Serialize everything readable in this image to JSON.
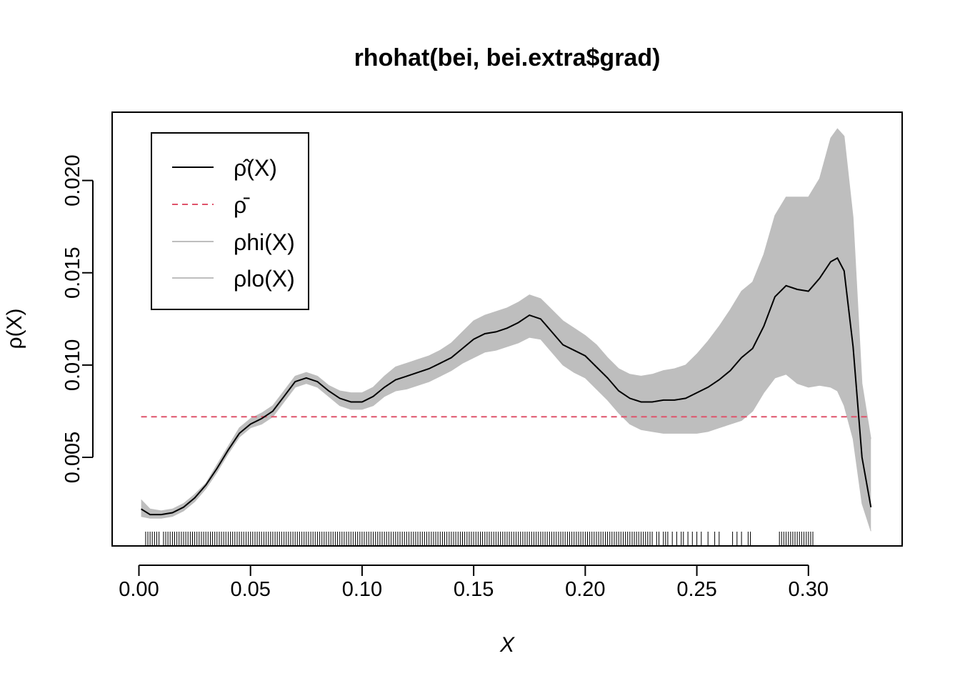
{
  "chart_data": {
    "type": "line",
    "title": "rhohat(bei, bei.extra$grad)",
    "xlabel": "X",
    "ylabel": "ρ(X)",
    "xlim": [
      -0.012,
      0.342
    ],
    "ylim": [
      0.0002,
      0.0237
    ],
    "x_ticks": [
      0.0,
      0.05,
      0.1,
      0.15,
      0.2,
      0.25,
      0.3
    ],
    "x_tick_labels": [
      "0.00",
      "0.05",
      "0.10",
      "0.15",
      "0.20",
      "0.25",
      "0.30"
    ],
    "y_ticks": [
      0.005,
      0.01,
      0.015,
      0.02
    ],
    "y_tick_labels": [
      "0.005",
      "0.010",
      "0.015",
      "0.020"
    ],
    "grid": false,
    "legend_position": "top-left",
    "legend": [
      {
        "label": "ρ̂(X)",
        "color": "#000000",
        "dash": "solid"
      },
      {
        "label": "ρ̄",
        "color": "#DF536B",
        "dash": "dashed"
      },
      {
        "label": "ρhi(X)",
        "color": "#BEBEBE",
        "dash": "solid"
      },
      {
        "label": "ρlo(X)",
        "color": "#BEBEBE",
        "dash": "solid"
      }
    ],
    "series": [
      {
        "name": "ρ̂(X)",
        "color": "#000000",
        "x": [
          0.001,
          0.005,
          0.01,
          0.015,
          0.02,
          0.025,
          0.03,
          0.035,
          0.04,
          0.045,
          0.05,
          0.055,
          0.06,
          0.065,
          0.07,
          0.075,
          0.08,
          0.085,
          0.09,
          0.095,
          0.1,
          0.105,
          0.11,
          0.115,
          0.12,
          0.125,
          0.13,
          0.135,
          0.14,
          0.145,
          0.15,
          0.155,
          0.16,
          0.165,
          0.17,
          0.175,
          0.18,
          0.185,
          0.19,
          0.195,
          0.2,
          0.205,
          0.21,
          0.215,
          0.22,
          0.225,
          0.23,
          0.235,
          0.24,
          0.245,
          0.25,
          0.255,
          0.26,
          0.265,
          0.27,
          0.275,
          0.28,
          0.285,
          0.29,
          0.295,
          0.3,
          0.305,
          0.31,
          0.313,
          0.316,
          0.32,
          0.324,
          0.328
        ],
        "values": [
          0.0022,
          0.0019,
          0.0019,
          0.002,
          0.0023,
          0.0028,
          0.0035,
          0.0044,
          0.0054,
          0.0063,
          0.0068,
          0.0071,
          0.0075,
          0.0083,
          0.0091,
          0.0093,
          0.0091,
          0.0086,
          0.0082,
          0.008,
          0.008,
          0.0083,
          0.0088,
          0.0092,
          0.0094,
          0.0096,
          0.0098,
          0.0101,
          0.0104,
          0.0109,
          0.0114,
          0.0117,
          0.0118,
          0.012,
          0.0123,
          0.0127,
          0.0125,
          0.0118,
          0.0111,
          0.0108,
          0.0105,
          0.0099,
          0.0093,
          0.0086,
          0.0082,
          0.008,
          0.008,
          0.0081,
          0.0081,
          0.0082,
          0.0085,
          0.0088,
          0.0092,
          0.0097,
          0.0104,
          0.0109,
          0.0121,
          0.0137,
          0.0143,
          0.0141,
          0.014,
          0.0147,
          0.0156,
          0.0158,
          0.0151,
          0.011,
          0.005,
          0.0023
        ]
      },
      {
        "name": "ρ̄",
        "color": "#DF536B",
        "x": [
          0.001,
          0.328
        ],
        "values": [
          0.0072,
          0.0072
        ]
      },
      {
        "name": "ρhi(X)",
        "color": "#BEBEBE",
        "x": [
          0.001,
          0.005,
          0.01,
          0.015,
          0.02,
          0.025,
          0.03,
          0.035,
          0.04,
          0.045,
          0.05,
          0.055,
          0.06,
          0.065,
          0.07,
          0.075,
          0.08,
          0.085,
          0.09,
          0.095,
          0.1,
          0.105,
          0.11,
          0.115,
          0.12,
          0.125,
          0.13,
          0.135,
          0.14,
          0.145,
          0.15,
          0.155,
          0.16,
          0.165,
          0.17,
          0.175,
          0.18,
          0.185,
          0.19,
          0.195,
          0.2,
          0.205,
          0.21,
          0.215,
          0.22,
          0.225,
          0.23,
          0.235,
          0.24,
          0.245,
          0.25,
          0.255,
          0.26,
          0.265,
          0.27,
          0.275,
          0.28,
          0.285,
          0.29,
          0.295,
          0.3,
          0.305,
          0.31,
          0.313,
          0.316,
          0.32,
          0.324,
          0.328
        ],
        "values": [
          0.0027,
          0.0022,
          0.0021,
          0.0022,
          0.0025,
          0.003,
          0.0036,
          0.0046,
          0.0056,
          0.0066,
          0.0071,
          0.0074,
          0.0078,
          0.0086,
          0.0094,
          0.0096,
          0.0094,
          0.0089,
          0.0086,
          0.0085,
          0.0085,
          0.0088,
          0.0094,
          0.0099,
          0.0101,
          0.0103,
          0.0105,
          0.0108,
          0.0112,
          0.0118,
          0.0124,
          0.0127,
          0.0129,
          0.0131,
          0.0134,
          0.0138,
          0.0136,
          0.013,
          0.0124,
          0.012,
          0.0116,
          0.0111,
          0.0104,
          0.0098,
          0.0095,
          0.0094,
          0.0095,
          0.0097,
          0.0098,
          0.01,
          0.0106,
          0.0113,
          0.0121,
          0.013,
          0.014,
          0.0145,
          0.016,
          0.0181,
          0.0191,
          0.0191,
          0.0191,
          0.0201,
          0.0223,
          0.0228,
          0.0224,
          0.018,
          0.009,
          0.006
        ]
      },
      {
        "name": "ρlo(X)",
        "color": "#BEBEBE",
        "x": [
          0.001,
          0.005,
          0.01,
          0.015,
          0.02,
          0.025,
          0.03,
          0.035,
          0.04,
          0.045,
          0.05,
          0.055,
          0.06,
          0.065,
          0.07,
          0.075,
          0.08,
          0.085,
          0.09,
          0.095,
          0.1,
          0.105,
          0.11,
          0.115,
          0.12,
          0.125,
          0.13,
          0.135,
          0.14,
          0.145,
          0.15,
          0.155,
          0.16,
          0.165,
          0.17,
          0.175,
          0.18,
          0.185,
          0.19,
          0.195,
          0.2,
          0.205,
          0.21,
          0.215,
          0.22,
          0.225,
          0.23,
          0.235,
          0.24,
          0.245,
          0.25,
          0.255,
          0.26,
          0.265,
          0.27,
          0.275,
          0.28,
          0.285,
          0.29,
          0.295,
          0.3,
          0.305,
          0.31,
          0.313,
          0.316,
          0.32,
          0.324,
          0.328
        ],
        "values": [
          0.0018,
          0.0017,
          0.0017,
          0.0018,
          0.0021,
          0.0026,
          0.0033,
          0.0042,
          0.0052,
          0.0061,
          0.0066,
          0.0068,
          0.0072,
          0.008,
          0.0088,
          0.009,
          0.0088,
          0.0083,
          0.0078,
          0.0076,
          0.0076,
          0.0078,
          0.0083,
          0.0086,
          0.0087,
          0.0089,
          0.0091,
          0.0094,
          0.0097,
          0.0101,
          0.0104,
          0.0107,
          0.0108,
          0.011,
          0.0112,
          0.0115,
          0.0114,
          0.0107,
          0.01,
          0.0096,
          0.0093,
          0.0087,
          0.0081,
          0.0074,
          0.0068,
          0.0065,
          0.0064,
          0.0063,
          0.0063,
          0.0063,
          0.0063,
          0.0064,
          0.0066,
          0.0068,
          0.007,
          0.0075,
          0.0085,
          0.0093,
          0.0095,
          0.009,
          0.0088,
          0.0089,
          0.0088,
          0.0086,
          0.0078,
          0.006,
          0.0025,
          0.001
        ]
      }
    ],
    "rug": {
      "x": [
        0.003,
        0.004,
        0.005,
        0.006,
        0.007,
        0.008,
        0.009,
        0.011,
        0.012,
        0.013,
        0.014,
        0.015,
        0.016,
        0.017,
        0.018,
        0.019,
        0.02,
        0.021,
        0.022,
        0.023,
        0.024,
        0.025,
        0.026,
        0.027,
        0.028,
        0.029,
        0.03,
        0.031,
        0.032,
        0.033,
        0.034,
        0.035,
        0.036,
        0.037,
        0.038,
        0.039,
        0.04,
        0.041,
        0.042,
        0.043,
        0.044,
        0.045,
        0.046,
        0.047,
        0.048,
        0.049,
        0.05,
        0.051,
        0.052,
        0.053,
        0.054,
        0.055,
        0.056,
        0.057,
        0.058,
        0.059,
        0.06,
        0.061,
        0.062,
        0.063,
        0.064,
        0.065,
        0.066,
        0.067,
        0.068,
        0.069,
        0.07,
        0.071,
        0.072,
        0.073,
        0.074,
        0.075,
        0.076,
        0.077,
        0.078,
        0.079,
        0.08,
        0.081,
        0.082,
        0.083,
        0.084,
        0.085,
        0.086,
        0.087,
        0.088,
        0.089,
        0.09,
        0.091,
        0.092,
        0.093,
        0.094,
        0.095,
        0.096,
        0.097,
        0.098,
        0.099,
        0.1,
        0.101,
        0.102,
        0.103,
        0.104,
        0.105,
        0.106,
        0.107,
        0.108,
        0.109,
        0.11,
        0.111,
        0.112,
        0.113,
        0.114,
        0.115,
        0.116,
        0.117,
        0.118,
        0.119,
        0.12,
        0.121,
        0.122,
        0.123,
        0.124,
        0.125,
        0.126,
        0.127,
        0.128,
        0.129,
        0.13,
        0.131,
        0.132,
        0.133,
        0.134,
        0.135,
        0.136,
        0.137,
        0.138,
        0.139,
        0.14,
        0.141,
        0.142,
        0.143,
        0.144,
        0.145,
        0.146,
        0.147,
        0.148,
        0.149,
        0.15,
        0.151,
        0.152,
        0.153,
        0.154,
        0.155,
        0.156,
        0.157,
        0.158,
        0.159,
        0.16,
        0.161,
        0.162,
        0.163,
        0.164,
        0.165,
        0.166,
        0.167,
        0.168,
        0.169,
        0.17,
        0.171,
        0.172,
        0.173,
        0.174,
        0.175,
        0.176,
        0.177,
        0.178,
        0.179,
        0.18,
        0.181,
        0.182,
        0.183,
        0.184,
        0.185,
        0.186,
        0.187,
        0.188,
        0.189,
        0.19,
        0.191,
        0.192,
        0.193,
        0.194,
        0.195,
        0.196,
        0.197,
        0.198,
        0.199,
        0.2,
        0.201,
        0.202,
        0.203,
        0.204,
        0.205,
        0.206,
        0.207,
        0.208,
        0.209,
        0.21,
        0.211,
        0.212,
        0.213,
        0.214,
        0.215,
        0.216,
        0.217,
        0.218,
        0.219,
        0.22,
        0.221,
        0.222,
        0.223,
        0.224,
        0.225,
        0.226,
        0.227,
        0.228,
        0.229,
        0.23,
        0.232,
        0.233,
        0.235,
        0.236,
        0.237,
        0.239,
        0.241,
        0.243,
        0.244,
        0.246,
        0.248,
        0.25,
        0.252,
        0.255,
        0.258,
        0.26,
        0.266,
        0.268,
        0.27,
        0.273,
        0.274,
        0.287,
        0.288,
        0.289,
        0.29,
        0.291,
        0.292,
        0.293,
        0.294,
        0.295,
        0.296,
        0.297,
        0.298,
        0.299,
        0.3,
        0.301,
        0.302
      ]
    }
  }
}
